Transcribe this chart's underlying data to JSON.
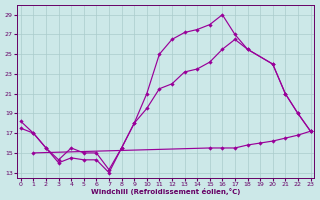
{
  "xlabel": "Windchill (Refroidissement éolien,°C)",
  "background_color": "#cce8e8",
  "grid_color": "#aacccc",
  "line_color": "#990099",
  "text_color": "#660066",
  "xlim": [
    -0.3,
    23.3
  ],
  "ylim": [
    12.5,
    30.0
  ],
  "yticks": [
    13,
    15,
    17,
    19,
    21,
    23,
    25,
    27,
    29
  ],
  "xticks": [
    0,
    1,
    2,
    3,
    4,
    5,
    6,
    7,
    8,
    9,
    10,
    11,
    12,
    13,
    14,
    15,
    16,
    17,
    18,
    19,
    20,
    21,
    22,
    23
  ],
  "curve_upper_x": [
    0,
    1,
    2,
    3,
    4,
    5,
    6,
    7,
    8,
    9,
    10,
    11,
    12,
    13,
    14,
    15,
    16,
    17,
    18,
    20,
    21,
    22,
    23
  ],
  "curve_upper_y": [
    18.2,
    17.0,
    15.5,
    14.0,
    14.5,
    14.3,
    14.3,
    13.0,
    15.5,
    18.0,
    21.0,
    25.0,
    26.5,
    27.2,
    27.5,
    28.0,
    29.0,
    27.0,
    25.5,
    24.0,
    21.0,
    19.0,
    17.2
  ],
  "curve_middle_x": [
    0,
    1,
    2,
    3,
    4,
    5,
    6,
    7,
    8,
    9,
    10,
    11,
    12,
    13,
    14,
    15,
    16,
    17,
    18,
    20,
    21,
    22,
    23
  ],
  "curve_middle_y": [
    17.5,
    17.0,
    15.5,
    14.3,
    15.5,
    15.0,
    15.0,
    13.3,
    15.5,
    18.0,
    19.5,
    21.5,
    22.0,
    23.2,
    23.5,
    24.2,
    25.5,
    26.5,
    25.5,
    24.0,
    21.0,
    19.0,
    17.2
  ],
  "curve_lower_x": [
    0,
    1,
    2,
    3,
    4,
    5,
    6,
    7,
    8,
    9,
    10,
    11,
    12,
    13,
    14,
    15,
    16,
    17,
    18,
    19,
    20,
    21,
    22,
    23
  ],
  "curve_lower_y": [
    null,
    15.0,
    null,
    null,
    null,
    null,
    null,
    null,
    null,
    null,
    null,
    null,
    null,
    null,
    null,
    15.5,
    15.5,
    15.5,
    15.8,
    16.0,
    16.2,
    16.5,
    16.8,
    17.2
  ]
}
